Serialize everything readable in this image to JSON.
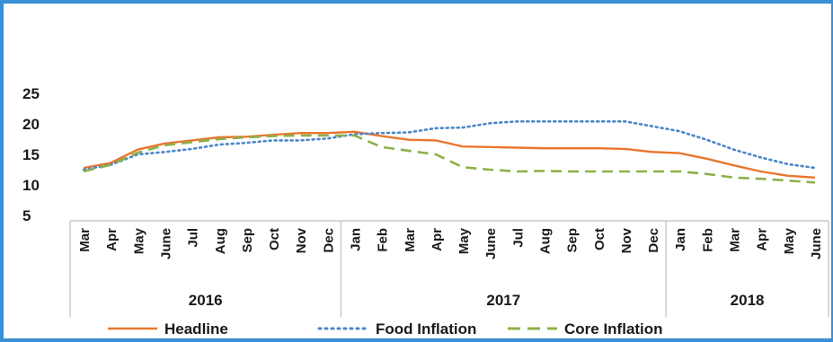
{
  "chart_data": {
    "type": "line",
    "categories": [
      "Mar",
      "Apr",
      "May",
      "June",
      "Jul",
      "Aug",
      "Sep",
      "Oct",
      "Nov",
      "Dec",
      "Jan",
      "Feb",
      "Mar",
      "Apr",
      "May",
      "June",
      "Jul",
      "Aug",
      "Sep",
      "Oct",
      "Nov",
      "Dec",
      "Jan",
      "Feb",
      "Mar",
      "Apr",
      "May",
      "June"
    ],
    "year_groups": [
      {
        "label": "2016",
        "start": 0,
        "end": 9
      },
      {
        "label": "2017",
        "start": 10,
        "end": 21
      },
      {
        "label": "2018",
        "start": 22,
        "end": 27
      }
    ],
    "series": [
      {
        "name": "Headline",
        "color": "#e8772e",
        "style": "solid",
        "values": [
          12.8,
          13.6,
          15.8,
          16.8,
          17.3,
          17.8,
          17.9,
          18.2,
          18.5,
          18.5,
          18.7,
          18.0,
          17.4,
          17.3,
          16.3,
          16.2,
          16.1,
          16.0,
          16.0,
          16.0,
          15.9,
          15.4,
          15.2,
          14.3,
          13.2,
          12.2,
          11.5,
          11.2
        ]
      },
      {
        "name": "Food Inflation",
        "color": "#4a86c8",
        "style": "dotted",
        "values": [
          12.5,
          13.3,
          15.0,
          15.4,
          15.9,
          16.6,
          16.9,
          17.3,
          17.3,
          17.6,
          18.3,
          18.5,
          18.6,
          19.3,
          19.4,
          20.1,
          20.4,
          20.4,
          20.4,
          20.4,
          20.4,
          19.6,
          18.8,
          17.4,
          15.8,
          14.5,
          13.4,
          12.8
        ]
      },
      {
        "name": "Core Inflation",
        "color": "#8db04a",
        "style": "dashed",
        "values": [
          12.2,
          13.3,
          15.3,
          16.5,
          17.0,
          17.5,
          17.8,
          18.0,
          18.1,
          18.1,
          18.1,
          16.2,
          15.6,
          15.0,
          12.9,
          12.5,
          12.2,
          12.3,
          12.2,
          12.2,
          12.2,
          12.2,
          12.2,
          11.8,
          11.2,
          11.0,
          10.7,
          10.4
        ]
      }
    ],
    "y_ticks": [
      "25",
      "20",
      "15",
      "10",
      "5"
    ],
    "ylim": [
      5,
      25
    ],
    "grid": false,
    "legend": "bottom",
    "title": "",
    "xlabel": "",
    "ylabel": ""
  }
}
